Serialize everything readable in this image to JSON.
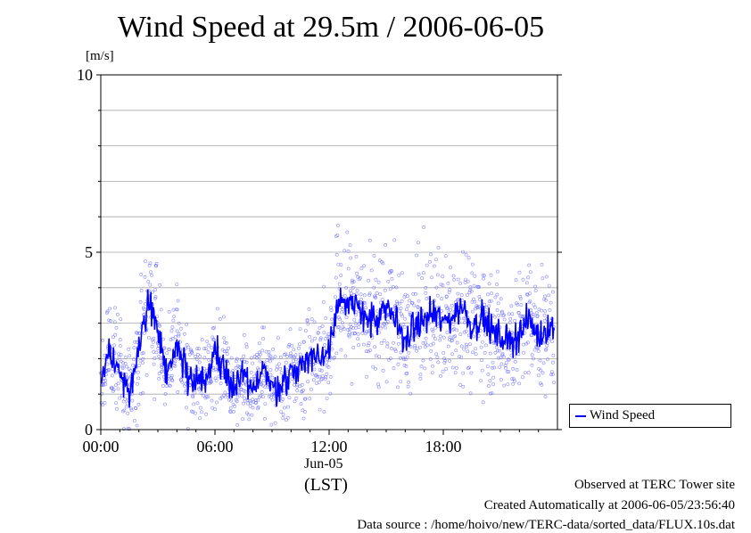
{
  "title": "Wind Speed at 29.5m / 2006-06-05",
  "y_unit": "[m/s]",
  "x_date_label": "Jun-05",
  "x_tz_label": "(LST)",
  "footer": {
    "line1": "Observed at TERC Tower site",
    "line2": "Created Automatically at 2006-06-05/23:56:40",
    "line3": "Data source : /home/hoivo/new/TERC-data/sorted_data/FLUX.10s.dat"
  },
  "colors": {
    "series": "#0000ff",
    "scatter": "#6a6aff",
    "grid": "#a8a8a8"
  },
  "chart_data": {
    "type": "line",
    "title": "Wind Speed at 29.5m / 2006-06-05",
    "ylabel": "[m/s]",
    "xlabel": "(LST)",
    "xlim": [
      "00:00",
      "24:00"
    ],
    "ylim": [
      0,
      10
    ],
    "x_ticks": [
      "00:00",
      "06:00",
      "12:00",
      "18:00"
    ],
    "y_ticks": [
      0,
      5,
      10
    ],
    "grid": "horizontal",
    "legend_position": "right",
    "series": [
      {
        "name": "Wind Speed",
        "style": "line-with-scatter",
        "x": [
          "00:00",
          "00:30",
          "01:00",
          "01:30",
          "02:00",
          "02:30",
          "03:00",
          "03:30",
          "04:00",
          "04:30",
          "05:00",
          "05:30",
          "06:00",
          "06:30",
          "07:00",
          "07:30",
          "08:00",
          "08:30",
          "09:00",
          "09:30",
          "10:00",
          "10:30",
          "11:00",
          "11:30",
          "12:00",
          "12:30",
          "13:00",
          "13:30",
          "14:00",
          "14:30",
          "15:00",
          "15:30",
          "16:00",
          "16:30",
          "17:00",
          "17:30",
          "18:00",
          "18:30",
          "19:00",
          "19:30",
          "20:00",
          "20:30",
          "21:00",
          "21:30",
          "22:00",
          "22:30",
          "23:00",
          "23:30"
        ],
        "values": [
          1.2,
          2.3,
          1.6,
          1.1,
          2.2,
          3.6,
          2.8,
          1.4,
          2.5,
          1.5,
          1.4,
          1.3,
          2.2,
          1.8,
          1.1,
          1.5,
          1.0,
          1.9,
          1.1,
          1.3,
          1.6,
          1.8,
          2.1,
          2.0,
          2.3,
          3.8,
          3.4,
          3.5,
          3.2,
          3.0,
          3.4,
          3.1,
          2.5,
          2.9,
          3.1,
          3.3,
          3.0,
          3.2,
          3.5,
          2.9,
          3.2,
          2.8,
          2.6,
          2.5,
          2.7,
          3.1,
          2.6,
          2.9
        ]
      }
    ]
  }
}
